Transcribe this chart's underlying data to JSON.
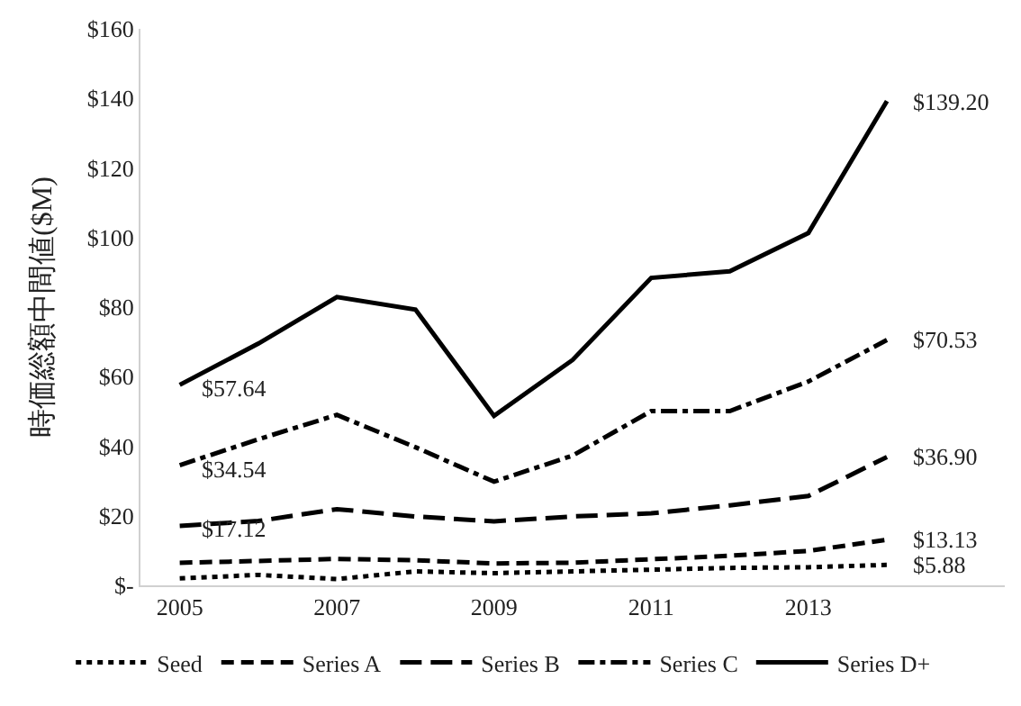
{
  "chart_data": {
    "type": "line",
    "ylabel": "時価総額中間値($M)",
    "x": [
      2005,
      2006,
      2007,
      2008,
      2009,
      2010,
      2011,
      2012,
      2013,
      2014
    ],
    "series": [
      {
        "name": "Seed",
        "color": "#000000",
        "line_style": "dotted",
        "values": [
          2.0,
          3.0,
          1.8,
          4.0,
          3.5,
          4.0,
          4.5,
          5.0,
          5.2,
          5.88
        ],
        "value_labels": [
          null,
          null,
          null,
          null,
          null,
          null,
          null,
          null,
          null,
          "$5.88"
        ]
      },
      {
        "name": "Series A",
        "color": "#000000",
        "line_style": "dashed",
        "values": [
          6.5,
          7.0,
          7.6,
          7.2,
          6.3,
          6.5,
          7.5,
          8.5,
          9.9,
          13.13
        ],
        "value_labels": [
          null,
          null,
          null,
          null,
          null,
          null,
          null,
          null,
          null,
          "$13.13"
        ]
      },
      {
        "name": "Series B",
        "color": "#000000",
        "line_style": "longdash",
        "values": [
          17.12,
          18.5,
          21.9,
          19.8,
          18.4,
          19.8,
          20.7,
          23.0,
          25.7,
          36.9
        ],
        "value_labels": [
          "$17.12",
          null,
          null,
          null,
          null,
          null,
          null,
          null,
          null,
          "$36.90"
        ]
      },
      {
        "name": "Series C",
        "color": "#000000",
        "line_style": "dashdot",
        "values": [
          34.54,
          42.0,
          49.0,
          39.7,
          29.8,
          37.3,
          50.1,
          50.1,
          58.6,
          70.53
        ],
        "value_labels": [
          "$34.54",
          null,
          null,
          null,
          null,
          null,
          null,
          null,
          null,
          "$70.53"
        ]
      },
      {
        "name": "Series D+",
        "color": "#000000",
        "line_style": "solid",
        "values": [
          57.64,
          69.5,
          82.9,
          79.3,
          48.7,
          64.8,
          88.4,
          90.3,
          101.3,
          139.2
        ],
        "value_labels": [
          "$57.64",
          null,
          null,
          null,
          null,
          null,
          null,
          null,
          null,
          "$139.20"
        ]
      }
    ],
    "xlim": [
      2004.5,
      2015.5
    ],
    "xticks": [
      2005,
      2007,
      2009,
      2011,
      2013
    ],
    "ylim": [
      0,
      160
    ],
    "yticks": [
      {
        "value": 0,
        "label": "$-"
      },
      {
        "value": 20,
        "label": "$20"
      },
      {
        "value": 40,
        "label": "$40"
      },
      {
        "value": 60,
        "label": "$60"
      },
      {
        "value": 80,
        "label": "$80"
      },
      {
        "value": 100,
        "label": "$100"
      },
      {
        "value": 120,
        "label": "$120"
      },
      {
        "value": 140,
        "label": "$140"
      },
      {
        "value": 160,
        "label": "$160"
      }
    ],
    "grid": false,
    "legend": "bottom",
    "marker": "none"
  }
}
